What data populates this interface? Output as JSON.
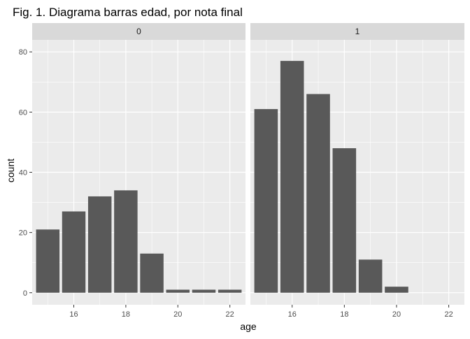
{
  "chart_data": {
    "type": "bar",
    "title": "Fig. 1. Diagrama barras edad, por nota final",
    "xlabel": "age",
    "ylabel": "count",
    "x_ticks": [
      16,
      18,
      20,
      22
    ],
    "y_ticks": [
      0,
      20,
      40,
      60,
      80
    ],
    "xlim": [
      14.4,
      22.6
    ],
    "ylim": [
      -4,
      84
    ],
    "grid": true,
    "facet_variable_levels": [
      "0",
      "1"
    ],
    "panels": [
      {
        "facet_label": "0",
        "x": [
          15,
          16,
          17,
          18,
          19,
          20,
          21,
          22
        ],
        "values": [
          21,
          27,
          32,
          34,
          13,
          1,
          1,
          1
        ]
      },
      {
        "facet_label": "1",
        "x": [
          15,
          16,
          17,
          18,
          19,
          20
        ],
        "values": [
          61,
          77,
          66,
          48,
          11,
          2
        ]
      }
    ],
    "colors": {
      "bar": "#595959",
      "panel_bg": "#ebebeb",
      "strip_bg": "#d9d9d9",
      "grid": "#ffffff",
      "text": "#000000",
      "tick_text": "#4d4d4d"
    }
  }
}
